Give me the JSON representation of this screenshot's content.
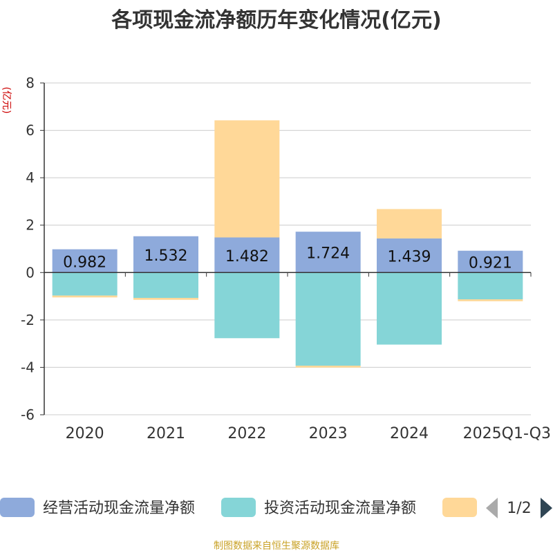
{
  "title": "各项现金流净额历年变化情况(亿元)",
  "footer": "制图数据来自恒生聚源数据库",
  "legend": {
    "page_text": "1/2",
    "items": [
      {
        "label": "经营活动现金流量净额",
        "color": "#8eaadb"
      },
      {
        "label": "投资活动现金流量净额",
        "color": "#85d5d7"
      },
      {
        "label": "",
        "color": "#ffd898"
      }
    ]
  },
  "chart_data": {
    "type": "bar",
    "stacked": true,
    "title": "各项现金流净额历年变化情况(亿元)",
    "ylabel": "(亿元)",
    "ylim": [
      -6,
      8
    ],
    "yticks": [
      -6,
      -4,
      -2,
      0,
      2,
      4,
      6,
      8
    ],
    "categories": [
      "2020",
      "2021",
      "2022",
      "2023",
      "2024",
      "2025Q1-Q3"
    ],
    "series": [
      {
        "name": "经营活动现金流量净额",
        "color": "#8eaadb",
        "values": [
          0.982,
          1.532,
          1.482,
          1.724,
          1.439,
          0.921
        ],
        "show_labels": true
      },
      {
        "name": "投资活动现金流量净额",
        "color": "#85d5d7",
        "values": [
          -0.97,
          -1.07,
          -2.77,
          -3.93,
          -3.04,
          -1.13
        ],
        "show_labels": false
      },
      {
        "name": "",
        "color": "#ffd898",
        "values": [
          -0.08,
          -0.08,
          4.94,
          -0.08,
          1.24,
          -0.08
        ],
        "show_labels": false
      }
    ]
  }
}
